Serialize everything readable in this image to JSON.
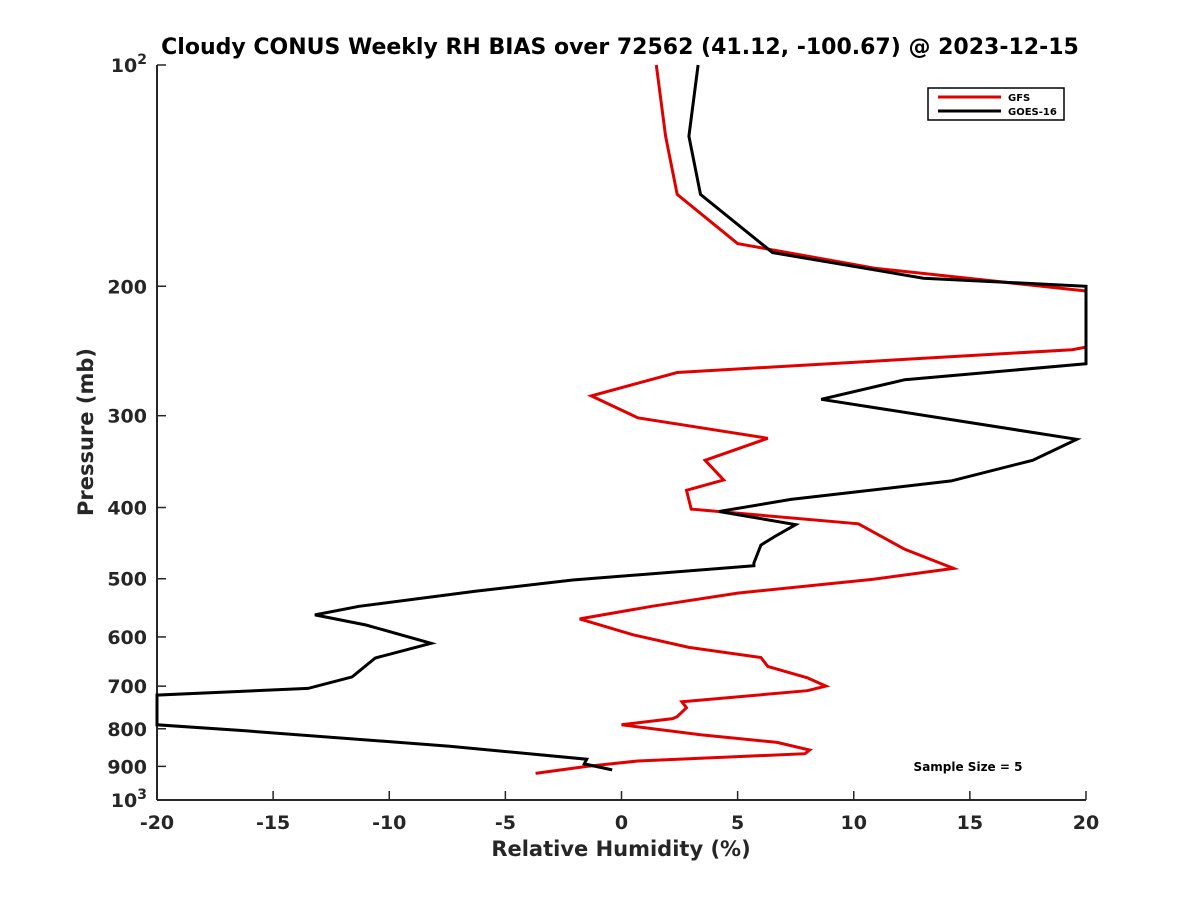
{
  "chart_data": {
    "type": "line",
    "title": "Cloudy CONUS Weekly RH BIAS over 72562 (41.12, -100.67) @ 2023-12-15",
    "xlabel": "Relative Humidity (%)",
    "ylabel": "Pressure (mb)",
    "xlim": [
      -20,
      20
    ],
    "ylim": [
      100,
      1000
    ],
    "y_scale": "log",
    "y_reversed": true,
    "grid": false,
    "legend_position": "top-right",
    "x_ticks": [
      {
        "value": -20,
        "label": "-20"
      },
      {
        "value": -15,
        "label": "-15"
      },
      {
        "value": -10,
        "label": "-10"
      },
      {
        "value": -5,
        "label": "-5"
      },
      {
        "value": 0,
        "label": "0"
      },
      {
        "value": 5,
        "label": "5"
      },
      {
        "value": 10,
        "label": "10"
      },
      {
        "value": 15,
        "label": "15"
      },
      {
        "value": 20,
        "label": "20"
      }
    ],
    "y_ticks": [
      {
        "value": 100,
        "base": "10",
        "exp": "2"
      },
      {
        "value": 200,
        "label": "200"
      },
      {
        "value": 300,
        "label": "300"
      },
      {
        "value": 400,
        "label": "400"
      },
      {
        "value": 500,
        "label": "500"
      },
      {
        "value": 600,
        "label": "600"
      },
      {
        "value": 700,
        "label": "700"
      },
      {
        "value": 800,
        "label": "800"
      },
      {
        "value": 900,
        "label": "900"
      },
      {
        "value": 1000,
        "base": "10",
        "exp": "3"
      }
    ],
    "annotation": "Sample Size = 5",
    "series": [
      {
        "name": "GFS",
        "color": "#e00000",
        "points": [
          [
            1.5,
            100
          ],
          [
            1.9,
            125
          ],
          [
            2.4,
            150
          ],
          [
            5.0,
            175
          ],
          [
            10.9,
            189
          ],
          [
            20,
            203
          ],
          [
            20,
            242
          ],
          [
            19.4,
            244
          ],
          [
            2.4,
            262
          ],
          [
            -1.3,
            282
          ],
          [
            0.7,
            302
          ],
          [
            6.3,
            322
          ],
          [
            3.6,
            345
          ],
          [
            4.4,
            367
          ],
          [
            2.8,
            379
          ],
          [
            3.0,
            402
          ],
          [
            10.2,
            421
          ],
          [
            12.2,
            456
          ],
          [
            14.3,
            484
          ],
          [
            10.8,
            501
          ],
          [
            5.0,
            523
          ],
          [
            1.3,
            545
          ],
          [
            -1.8,
            567
          ],
          [
            0.5,
            596
          ],
          [
            2.9,
            620
          ],
          [
            6.0,
            640
          ],
          [
            6.3,
            658
          ],
          [
            8.0,
            682
          ],
          [
            8.8,
            700
          ],
          [
            8.0,
            710
          ],
          [
            2.6,
            735
          ],
          [
            2.8,
            749
          ],
          [
            2.4,
            770
          ],
          [
            2.2,
            775
          ],
          [
            0,
            790
          ],
          [
            3.4,
            815
          ],
          [
            6.7,
            835
          ],
          [
            8.1,
            855
          ],
          [
            7.9,
            865
          ],
          [
            0.7,
            885
          ],
          [
            -1.5,
            900
          ],
          [
            -3.7,
            920
          ]
        ]
      },
      {
        "name": "GOES-16",
        "color": "#000000",
        "points": [
          [
            3.3,
            100
          ],
          [
            2.9,
            125
          ],
          [
            3.4,
            150
          ],
          [
            6.5,
            180
          ],
          [
            13.0,
            195
          ],
          [
            20,
            200
          ],
          [
            20,
            255
          ],
          [
            12.2,
            268
          ],
          [
            8.6,
            285
          ],
          [
            19.6,
            323
          ],
          [
            17.7,
            345
          ],
          [
            14.2,
            368
          ],
          [
            7.3,
            390
          ],
          [
            4.2,
            405
          ],
          [
            7.5,
            422
          ],
          [
            6.6,
            438
          ],
          [
            6.0,
            450
          ],
          [
            5.7,
            476
          ],
          [
            5.7,
            480
          ],
          [
            -2.1,
            502
          ],
          [
            -6.3,
            520
          ],
          [
            -11.3,
            545
          ],
          [
            -13.2,
            560
          ],
          [
            -11.0,
            578
          ],
          [
            -8.2,
            612
          ],
          [
            -10.6,
            641
          ],
          [
            -11.6,
            680
          ],
          [
            -13.5,
            705
          ],
          [
            -20,
            720
          ],
          [
            -20,
            790
          ],
          [
            -16.2,
            805
          ],
          [
            -7.4,
            845
          ],
          [
            -1.5,
            880
          ],
          [
            -1.6,
            893
          ],
          [
            -0.4,
            910
          ]
        ]
      }
    ]
  }
}
